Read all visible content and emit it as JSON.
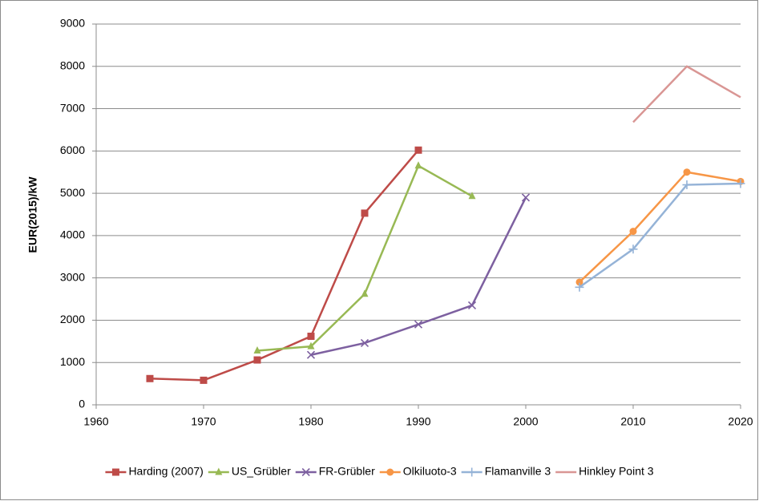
{
  "chart_data": {
    "type": "line",
    "ylabel": "EUR(2015)/kW",
    "xlim": [
      1960,
      2020
    ],
    "xticks": [
      1960,
      1970,
      1980,
      1990,
      2000,
      2010,
      2020
    ],
    "ylim": [
      0,
      9000
    ],
    "yticks": [
      0,
      1000,
      2000,
      3000,
      4000,
      5000,
      6000,
      7000,
      8000,
      9000
    ],
    "grid": true,
    "legend": "bottom",
    "series": [
      {
        "name": "Harding (2007)",
        "color": "#be4b48",
        "marker": "square",
        "x": [
          1965,
          1970,
          1975,
          1980,
          1985,
          1990
        ],
        "values": [
          620,
          580,
          1060,
          1620,
          4530,
          6020
        ]
      },
      {
        "name": "US_Grübler",
        "color": "#98b954",
        "marker": "triangle",
        "x": [
          1975,
          1980,
          1985,
          1990,
          1995
        ],
        "values": [
          1280,
          1380,
          2620,
          5650,
          4930
        ]
      },
      {
        "name": "FR-Grübler",
        "color": "#7d60a0",
        "marker": "x",
        "x": [
          1980,
          1985,
          1990,
          1995,
          2000
        ],
        "values": [
          1180,
          1460,
          1900,
          2350,
          4900
        ]
      },
      {
        "name": "Olkiluoto-3",
        "color": "#f79646",
        "marker": "circle",
        "x": [
          2005,
          2010,
          2015,
          2020
        ],
        "values": [
          2900,
          4100,
          5500,
          5280
        ]
      },
      {
        "name": "Flamanville 3",
        "color": "#95b3d7",
        "marker": "plus",
        "x": [
          2005,
          2010,
          2015,
          2020
        ],
        "values": [
          2780,
          3680,
          5200,
          5230
        ]
      },
      {
        "name": "Hinkley Point 3",
        "color": "#d99694",
        "marker": "none",
        "x": [
          2010,
          2015,
          2020
        ],
        "values": [
          6680,
          8000,
          7270
        ]
      }
    ]
  }
}
